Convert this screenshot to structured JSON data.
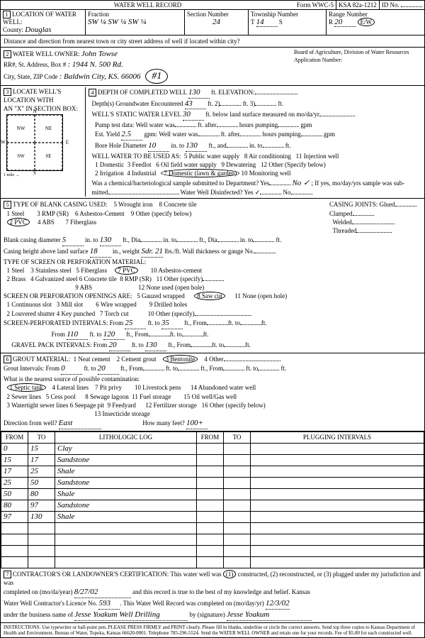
{
  "header": {
    "title": "WATER WELL RECORD",
    "form": "Form WWC-5",
    "ksa": "KSA 82a-1212",
    "id_label": "ID No.",
    "id": ""
  },
  "section1": {
    "label": "LOCATION OF WATER WELL:",
    "county_label": "County:",
    "county": "Douglas",
    "fraction_label": "Fraction",
    "fraction": "SW ¼  SW ¼  SW ¼",
    "section_label": "Section Number",
    "section": "24",
    "township_label": "Township Number",
    "township_t": "T",
    "township": "14",
    "township_s": "S",
    "range_label": "Range Number",
    "range_r": "R",
    "range": "20",
    "range_ew": "E/W",
    "dist_label": "Distance and direction from nearest town or city street address of well if located within city?"
  },
  "section2": {
    "label": "WATER WELL OWNER:",
    "owner": "John Towse",
    "rr_label": "RR#, St. Address, Box #",
    "rr": ": 1944 N. 500 Rd.",
    "city_label": "City, State, ZIP Code",
    "city": ": Baldwin City, KS. 66006",
    "hash": "#1",
    "board": "Board of Agriculture, Division of Water Resources",
    "app_label": "Application Number:"
  },
  "section3_4": {
    "label3": "LOCATE WELL'S LOCATION WITH",
    "xbox": "AN \"X\" IN SECTION BOX:",
    "nw": "NW",
    "ne": "NE",
    "sw": "SW",
    "se": "SE",
    "label4": "DEPTH OF COMPLETED WELL",
    "depth": "130",
    "depth_u": "ft. ELEVATION:",
    "gw_label": "Depth(s) Groundwater Encountered",
    "gw": "43",
    "gw_u": "ft. 2)",
    "gw3": "ft. 3)",
    "static_label": "WELL'S STATIC WATER LEVEL",
    "static": "30",
    "static_u": "ft. below land surface measured on mo/da/yr",
    "pump_label": "Pump test data:  Well water was",
    "pump_u": "ft. after",
    "pump_u2": "hours pumping",
    "pump_gpm": "gpm",
    "yield_label": "Est. Yield",
    "yield": "2.5",
    "yield_u": "gpm:  Well water was",
    "bore_label": "Bore Hole Diameter",
    "bore": "10",
    "bore_u": "in. to",
    "bore2": "130",
    "bore_u2": "ft., and",
    "bore_u3": "in. to",
    "bore_u4": "ft.",
    "use_label": "WELL WATER TO BE USED AS:",
    "uses": [
      "1 Domestic",
      "2 Irrigation",
      "3 Feedlot",
      "4 Industrial",
      "5 Public water supply",
      "6 Oil field water supply",
      "7 Domestic (lawn & garden)",
      "8 Air conditioning",
      "9 Dewatering",
      "10 Monitoring well",
      "11 Injection well",
      "12 Other (Specify below)"
    ],
    "chem_label": "Was a chemical/bacteriological sample submitted to Department?  Yes",
    "chem": "No ✓",
    "chem2": "; If yes, mo/day/yrs sample was sub-",
    "chem3": "mitted",
    "disinf": "Water Well Disinfected?  Yes ✓",
    "disinf_no": "No"
  },
  "section5": {
    "label": "TYPE OF BLANK CASING USED:",
    "opts": [
      "1 Steel",
      "2 PVC",
      "3 RMP (SR)",
      "4 ABS",
      "5 Wrought iron",
      "6 Asbestos-Cement",
      "7 Fiberglass",
      "8 Concrete tile",
      "9 Other (specify below)"
    ],
    "joints_label": "CASING JOINTS:  Glued",
    "joints": [
      "Clamped",
      "Welded",
      "Threaded"
    ],
    "dia_label": "Blank casing diameter",
    "dia": "5",
    "dia_u": "in. to",
    "dia2": "130",
    "dia_u2": "ft., Dia",
    "dia_u3": "in. to",
    "dia_u4": "ft., Dia",
    "dia_u5": "in. to",
    "dia_u6": "ft.",
    "height_label": "Casing height above land surface",
    "height": "18",
    "height_u": "in., weight",
    "weight": "Sdr. 21",
    "weight_u": "lbs./ft. Wall thickness or gauge No.",
    "screen_label": "TYPE OF SCREEN OR PERFORATION MATERIAL:",
    "screens": [
      "1 Steel",
      "2 Brass",
      "3 Stainless steel",
      "4 Galvanized steel",
      "5 Fiberglass",
      "6 Concrete tile",
      "7 PVC",
      "8 RMP (SR)",
      "9 ABS",
      "10 Asbestos-cement",
      "11 Other (specify)",
      "12 None used (open hole)"
    ],
    "open_label": "SCREEN OR PERFORATION OPENINGS ARE:",
    "opens": [
      "1 Continuous slot",
      "2 Louvered shutter",
      "3 Mill slot",
      "4 Key punched",
      "5 Gauzed wrapped",
      "6 Wire wrapped",
      "7 Torch cut",
      "8 Saw cut",
      "9 Drilled holes",
      "10 Other (specify)",
      "11 None (open hole)"
    ],
    "perf_label": "SCREEN-PERFORATED INTERVALS:  From",
    "perf": [
      [
        "25",
        "35"
      ],
      [
        "110",
        "120"
      ],
      [
        "20",
        "130"
      ]
    ],
    "grav_label": "GRAVEL PACK INTERVALS:  From"
  },
  "section6": {
    "label": "GROUT MATERIAL:",
    "mats": [
      "1 Neat cement",
      "2 Cement grout",
      "3 Bentonite",
      "4 Other"
    ],
    "int_label": "Grout Intervals:  From",
    "int_from": "0",
    "int_to": "20",
    "int_u": "ft., From",
    "int_u2": "ft. to",
    "int_u3": "ft., From",
    "int_u4": "ft. to",
    "int_u5": "ft.",
    "contam_label": "What is the nearest source of possible contamination:",
    "contams": [
      "1 Septic tank",
      "2 Sewer lines",
      "3 Watertight sewer lines",
      "4 Lateral lines",
      "5 Cess pool",
      "6 Seepage pit",
      "7 Pit privy",
      "8 Sewage lagoon",
      "9 Feedyard",
      "10 Livestock pens",
      "11 Fuel storage",
      "12 Fertilizer storage",
      "13 Insecticide storage",
      "14 Abandoned water well",
      "15 Oil well/Gas well",
      "16 Other (specify below)"
    ],
    "dir_label": "Direction from well?",
    "dir": "East",
    "feet_label": "How many feet?",
    "feet": "100+"
  },
  "log": {
    "headers": [
      "FROM",
      "TO",
      "LITHOLOGIC LOG",
      "FROM",
      "TO",
      "PLUGGING INTERVALS"
    ],
    "rows": [
      [
        "0",
        "15",
        "Clay",
        "",
        "",
        ""
      ],
      [
        "15",
        "17",
        "Sandstone",
        "",
        "",
        ""
      ],
      [
        "17",
        "25",
        "Shale",
        "",
        "",
        ""
      ],
      [
        "25",
        "50",
        "Sandstone",
        "",
        "",
        ""
      ],
      [
        "50",
        "80",
        "Shale",
        "",
        "",
        ""
      ],
      [
        "80",
        "97",
        "Sandstone",
        "",
        "",
        ""
      ],
      [
        "97",
        "130",
        "Shale",
        "",
        "",
        ""
      ],
      [
        "",
        "",
        "",
        "",
        "",
        ""
      ],
      [
        "",
        "",
        "",
        "",
        "",
        ""
      ],
      [
        "",
        "",
        "",
        "",
        "",
        ""
      ],
      [
        "",
        "",
        "",
        "",
        "",
        ""
      ]
    ]
  },
  "section7": {
    "label": "CONTRACTOR'S OR LANDOWNER'S CERTIFICATION: This water well was",
    "opts": "(1) constructed, (2) reconstructed, or (3) plugged under my jurisdiction and was",
    "comp_label": "completed on (mo/da/year)",
    "comp": "8/27/02",
    "comp2": "and this record is true to the best of my knowledge and belief. Kansas",
    "lic_label": "Water Well Contractor's Licence No.",
    "lic": "593",
    "lic2": ". This Water Well Record was completed on (mo/day/yr)",
    "lic_date": "12/3/02",
    "bus_label": "under the business name of",
    "bus": "Jesse Yoakum Well Drilling",
    "sig_label": "by (signature)",
    "sig": "Jesse Yoakum"
  },
  "footer": "INSTRUCTIONS: Use typewriter or ball-point pen. PLEASE PRESS FIRMLY and PRINT clearly. Please fill in blanks, underline or circle the correct answers. Send top three copies to Kansas Department of Health and Environment, Bureau of Water, Topeka, Kansas 66620-0001. Telephone 785-296-5524. Send the WATER WELL OWNER and retain one for your records. Fee of $5.00 for each constructed well."
}
